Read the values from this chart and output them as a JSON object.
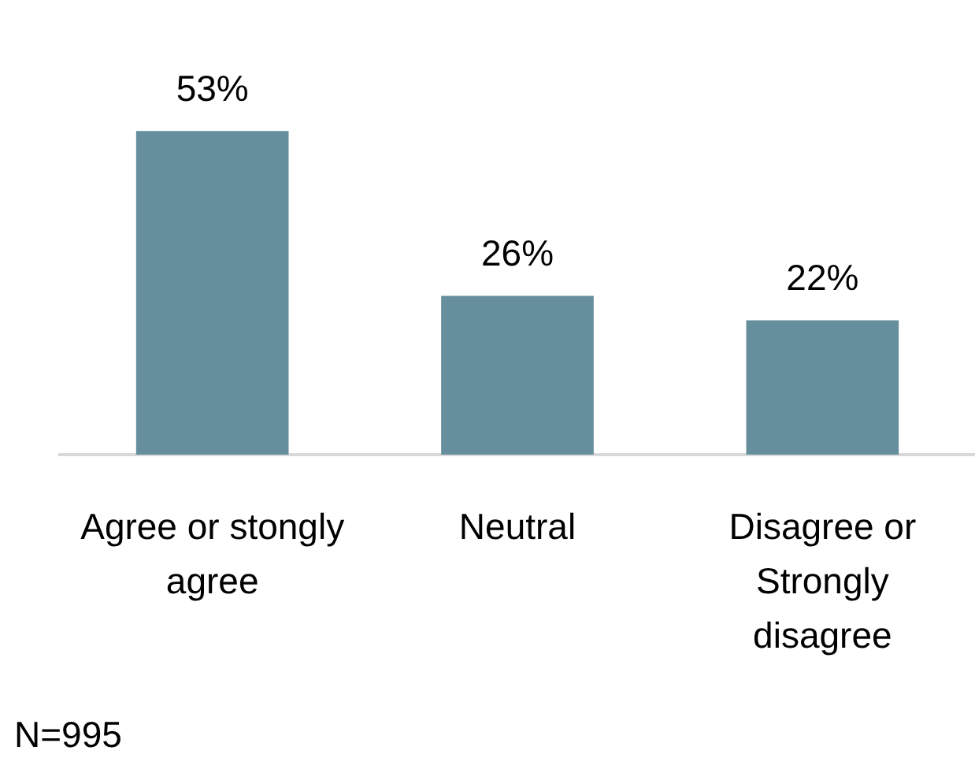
{
  "chart_data": {
    "type": "bar",
    "categories": [
      "Agree or stongly agree",
      "Neutral",
      "Disagree or Strongly disagree"
    ],
    "values": [
      53,
      26,
      22
    ],
    "color": "#668f9d",
    "value_labels": [
      "53%",
      "26%",
      "22%"
    ],
    "tick_labels": "x",
    "annotations": [
      "N=995"
    ]
  }
}
